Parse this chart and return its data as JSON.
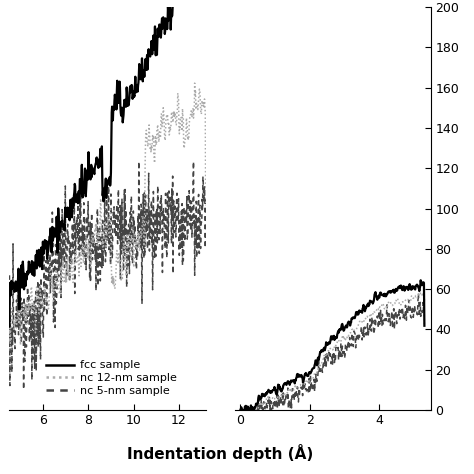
{
  "left_xlim": [
    4.5,
    13.2
  ],
  "left_xticks": [
    6,
    8,
    10,
    12
  ],
  "left_ylim": [
    -25,
    210
  ],
  "right_xlim": [
    -0.15,
    5.5
  ],
  "right_xticks": [
    0,
    2,
    4
  ],
  "right_ylim": [
    0,
    200
  ],
  "right_yticks": [
    0,
    20,
    40,
    60,
    80,
    100,
    120,
    140,
    160,
    180,
    200
  ],
  "xlabel": "Indentation depth (Å)",
  "legend_labels": [
    "fcc sample",
    "nc 12-nm sample",
    "nc 5-nm sample"
  ],
  "fcc_color": "#000000",
  "nc12_color": "#aaaaaa",
  "nc5_color": "#444444",
  "background_color": "#ffffff",
  "fig_width": 4.74,
  "fig_height": 4.74
}
